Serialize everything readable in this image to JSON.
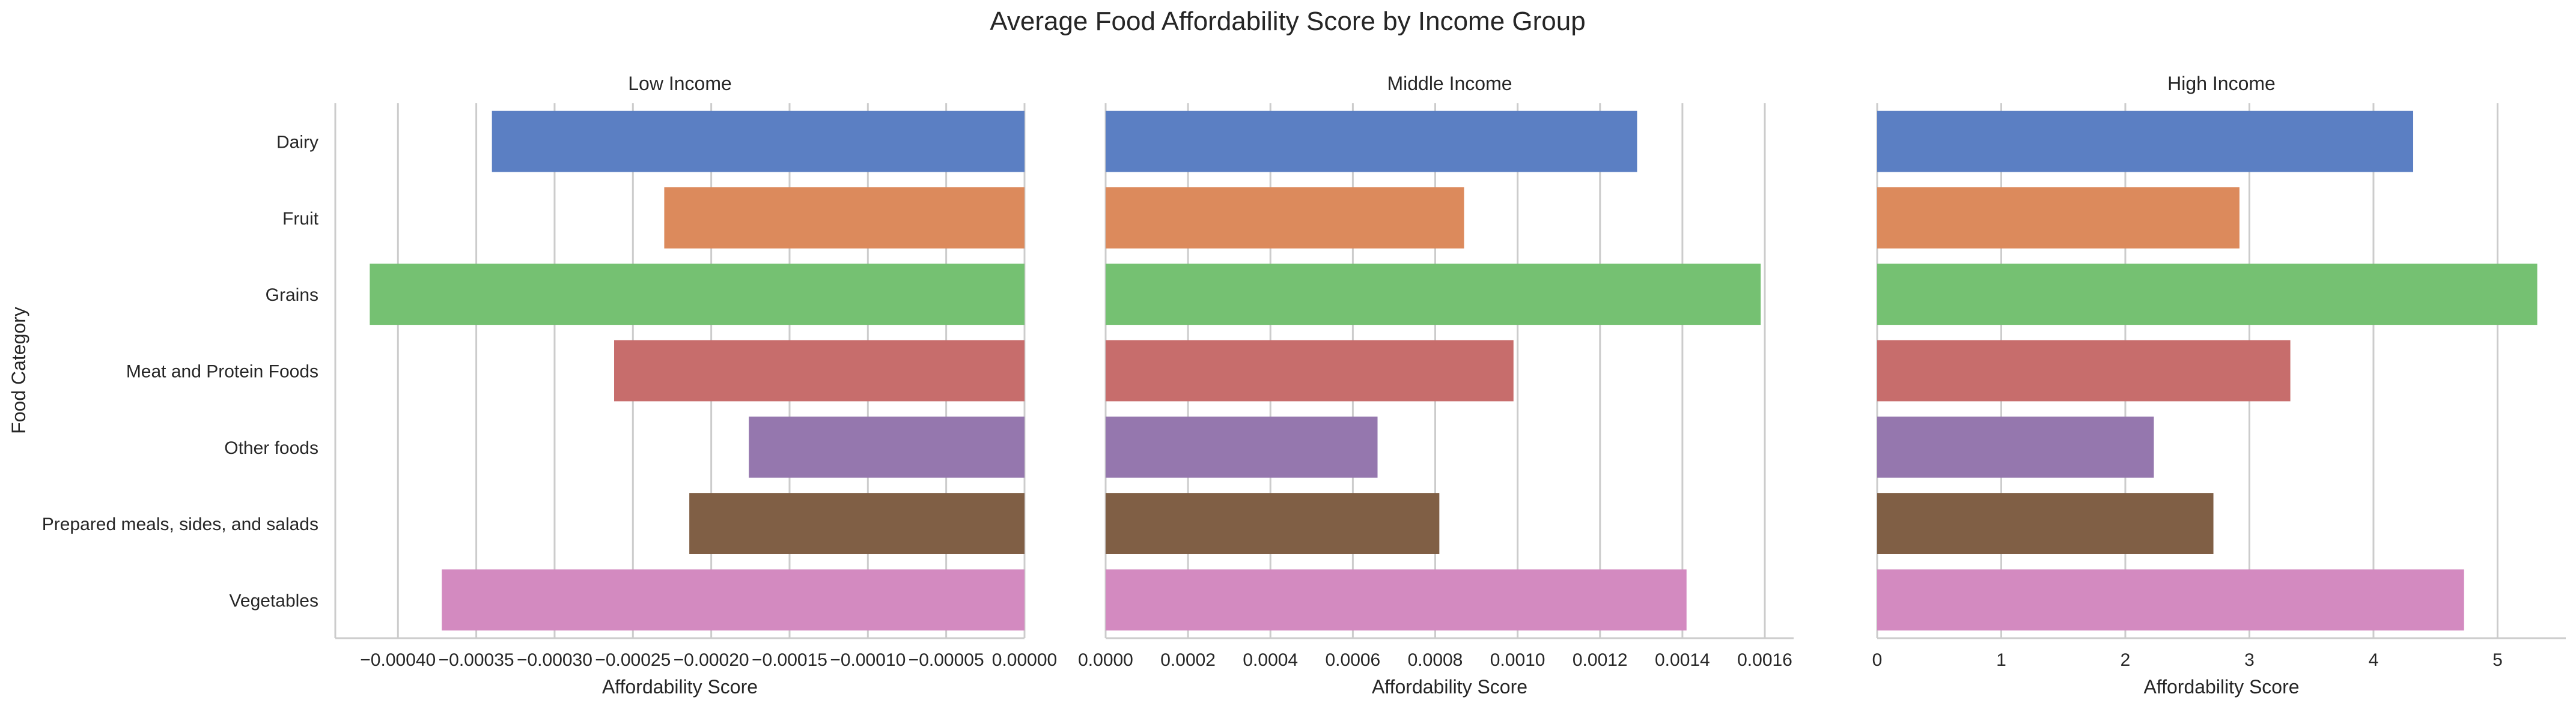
{
  "chart_data": {
    "type": "bar",
    "orientation": "horizontal",
    "title": "Average Food Affordability Score by Income Group",
    "ylabel": "Food Category",
    "categories": [
      "Dairy",
      "Fruit",
      "Grains",
      "Meat and Protein Foods",
      "Other foods",
      "Prepared meals, sides, and salads",
      "Vegetables"
    ],
    "colors": [
      "#5b7fc3",
      "#dc8a5c",
      "#75c172",
      "#c76d6c",
      "#9577ae",
      "#805f45",
      "#d38ac0"
    ],
    "grid": true,
    "panels": [
      {
        "title": "Low Income",
        "xlabel": "Affordability Score",
        "xlim": [
          -0.00044,
          0.0
        ],
        "xticks": [
          -0.0004,
          -0.00035,
          -0.0003,
          -0.00025,
          -0.0002,
          -0.00015,
          -0.0001,
          -5e-05,
          0.0
        ],
        "xtick_labels": [
          "−0.00040",
          "−0.00035",
          "−0.00030",
          "−0.00025",
          "−0.00020",
          "−0.00015",
          "−0.00010",
          "−0.00005",
          "0.00000"
        ],
        "values": [
          -0.00034,
          -0.00023,
          -0.000418,
          -0.000262,
          -0.000176,
          -0.000214,
          -0.000372
        ]
      },
      {
        "title": "Middle Income",
        "xlabel": "Affordability Score",
        "xlim": [
          0.0,
          0.00167
        ],
        "xticks": [
          0.0,
          0.0002,
          0.0004,
          0.0006,
          0.0008,
          0.001,
          0.0012,
          0.0014,
          0.0016
        ],
        "xtick_labels": [
          "0.0000",
          "0.0002",
          "0.0004",
          "0.0006",
          "0.0008",
          "0.0010",
          "0.0012",
          "0.0014",
          "0.0016"
        ],
        "values": [
          0.00129,
          0.00087,
          0.00159,
          0.00099,
          0.00066,
          0.00081,
          0.00141
        ]
      },
      {
        "title": "High Income",
        "xlabel": "Affordability Score",
        "xlim": [
          0,
          5.55
        ],
        "xticks": [
          0,
          1,
          2,
          3,
          4,
          5
        ],
        "xtick_labels": [
          "0",
          "1",
          "2",
          "3",
          "4",
          "5"
        ],
        "values": [
          4.32,
          2.92,
          5.32,
          3.33,
          2.23,
          2.71,
          4.73
        ]
      }
    ]
  }
}
